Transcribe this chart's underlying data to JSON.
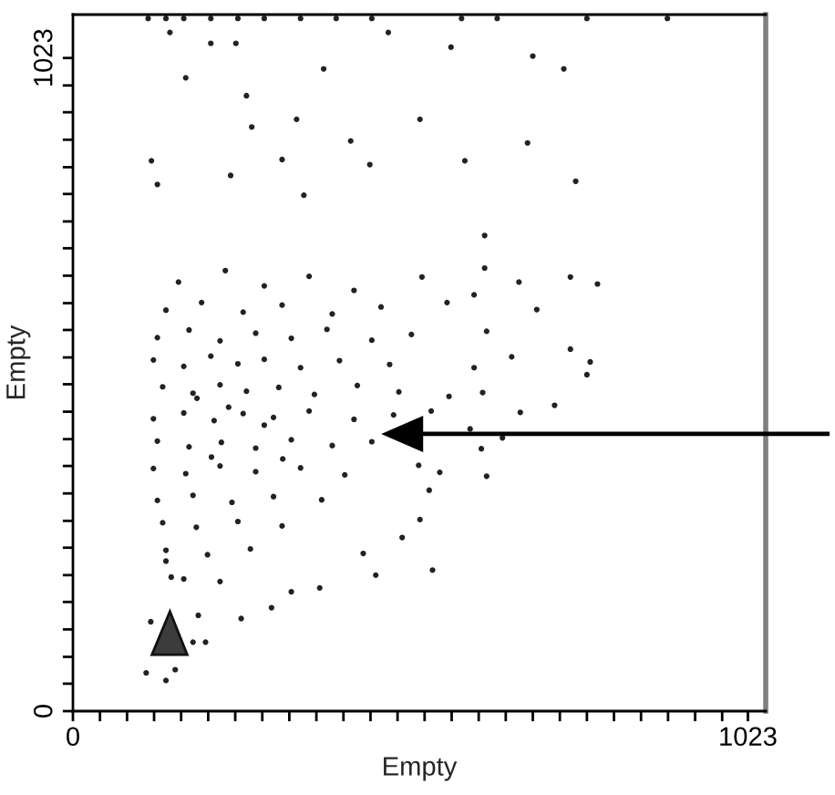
{
  "chart_data": {
    "type": "scatter",
    "xlabel": "Empty",
    "ylabel": "Empty",
    "color": "#222222",
    "marker": "circle",
    "x": [
      114,
      141,
      168,
      209,
      250,
      290,
      345,
      399,
      453,
      589,
      643,
      779,
      901,
      147,
      209,
      247,
      171,
      380,
      478,
      573,
      697,
      744,
      263,
      271,
      339,
      526,
      421,
      689,
      119,
      128,
      317,
      239,
      450,
      594,
      762,
      350,
      624,
      529,
      624,
      676,
      754,
      795,
      703,
      608,
      567,
      627,
      754,
      784,
      665,
      779,
      608,
      621,
      570,
      730,
      678,
      602,
      651,
      619,
      627,
      556,
      540,
      526,
      545,
      543,
      524,
      111,
      141,
      155,
      182,
      201,
      190,
      255,
      301,
      331,
      374,
      459,
      499,
      440,
      118,
      168,
      141,
      160,
      231,
      290,
      358,
      426,
      141,
      195,
      258,
      317,
      393,
      467,
      128,
      176,
      223,
      277,
      331,
      385,
      453,
      513,
      122,
      168,
      209,
      250,
      290,
      345,
      404,
      480,
      136,
      182,
      223,
      263,
      312,
      366,
      431,
      494,
      122,
      168,
      214,
      258,
      304,
      358,
      426,
      486,
      128,
      176,
      225,
      277,
      331,
      393,
      453,
      122,
      171,
      223,
      277,
      345,
      412,
      128,
      182,
      241,
      304,
      377,
      136,
      187,
      250,
      317,
      141,
      204,
      269,
      149,
      223,
      236,
      290,
      210,
      318,
      188
    ],
    "values": [
      1085,
      1085,
      1085,
      1085,
      1085,
      1085,
      1085,
      1085,
      1085,
      1085,
      1085,
      1085,
      1085,
      1063,
      1046,
      1046,
      992,
      1006,
      1063,
      1040,
      1026,
      1006,
      964,
      915,
      927,
      927,
      893,
      890,
      862,
      825,
      864,
      839,
      856,
      862,
      830,
      808,
      745,
      680,
      694,
      672,
      680,
      669,
      629,
      652,
      640,
      595,
      567,
      547,
      555,
      527,
      538,
      499,
      493,
      479,
      468,
      442,
      428,
      411,
      368,
      374,
      346,
      300,
      221,
      470,
      385,
      60,
      48,
      65,
      108,
      108,
      150,
      145,
      162,
      187,
      193,
      213,
      272,
      247,
      140,
      207,
      235,
      672,
      690,
      666,
      681,
      659,
      628,
      640,
      625,
      636,
      622,
      633,
      585,
      597,
      580,
      592,
      584,
      598,
      581,
      590,
      550,
      540,
      556,
      544,
      551,
      538,
      549,
      543,
      508,
      498,
      511,
      501,
      507,
      496,
      510,
      500,
      458,
      467,
      455,
      466,
      460,
      470,
      457,
      464,
      423,
      414,
      421,
      412,
      425,
      416,
      422,
      380,
      372,
      384,
      375,
      381,
      370,
      330,
      338,
      327,
      336,
      331,
      295,
      288,
      297,
      290,
      252,
      245,
      254,
      210,
      203,
      476,
      448,
      398,
      395,
      490
    ],
    "xlim": [
      0,
      1050
    ],
    "ylim": [
      0,
      1091
    ],
    "xticks": [
      0,
      {
        "value": 41,
        "label": null
      },
      {
        "value": 82,
        "label": null
      },
      {
        "value": 123,
        "label": null
      },
      {
        "value": 164,
        "label": null
      },
      {
        "value": 205,
        "label": null
      },
      {
        "value": 246,
        "label": null
      },
      {
        "value": 287,
        "label": null
      },
      {
        "value": 328,
        "label": null
      },
      {
        "value": 369,
        "label": null
      },
      {
        "value": 410,
        "label": null
      },
      {
        "value": 451,
        "label": null
      },
      {
        "value": 492,
        "label": null
      },
      {
        "value": 533,
        "label": null
      },
      {
        "value": 574,
        "label": null
      },
      {
        "value": 615,
        "label": null
      },
      {
        "value": 656,
        "label": null
      },
      {
        "value": 697,
        "label": null
      },
      {
        "value": 738,
        "label": null
      },
      {
        "value": 779,
        "label": null
      },
      {
        "value": 820,
        "label": null
      },
      {
        "value": 861,
        "label": null
      },
      {
        "value": 902,
        "label": null
      },
      {
        "value": 943,
        "label": null
      },
      {
        "value": 984,
        "label": null
      },
      1023
    ],
    "yticks": [
      0,
      {
        "value": 43,
        "label": null
      },
      {
        "value": 85,
        "label": null
      },
      {
        "value": 128,
        "label": null
      },
      {
        "value": 171,
        "label": null
      },
      {
        "value": 213,
        "label": null
      },
      {
        "value": 256,
        "label": null
      },
      {
        "value": 298,
        "label": null
      },
      {
        "value": 341,
        "label": null
      },
      {
        "value": 384,
        "label": null
      },
      {
        "value": 426,
        "label": null
      },
      {
        "value": 469,
        "label": null
      },
      {
        "value": 512,
        "label": null
      },
      {
        "value": 554,
        "label": null
      },
      {
        "value": 597,
        "label": null
      },
      {
        "value": 639,
        "label": null
      },
      {
        "value": 682,
        "label": null
      },
      {
        "value": 725,
        "label": null
      },
      {
        "value": 767,
        "label": null
      },
      {
        "value": 810,
        "label": null
      },
      {
        "value": 852,
        "label": null
      },
      {
        "value": 895,
        "label": null
      },
      {
        "value": 938,
        "label": null
      },
      {
        "value": 980,
        "label": null
      },
      1023
    ]
  }
}
